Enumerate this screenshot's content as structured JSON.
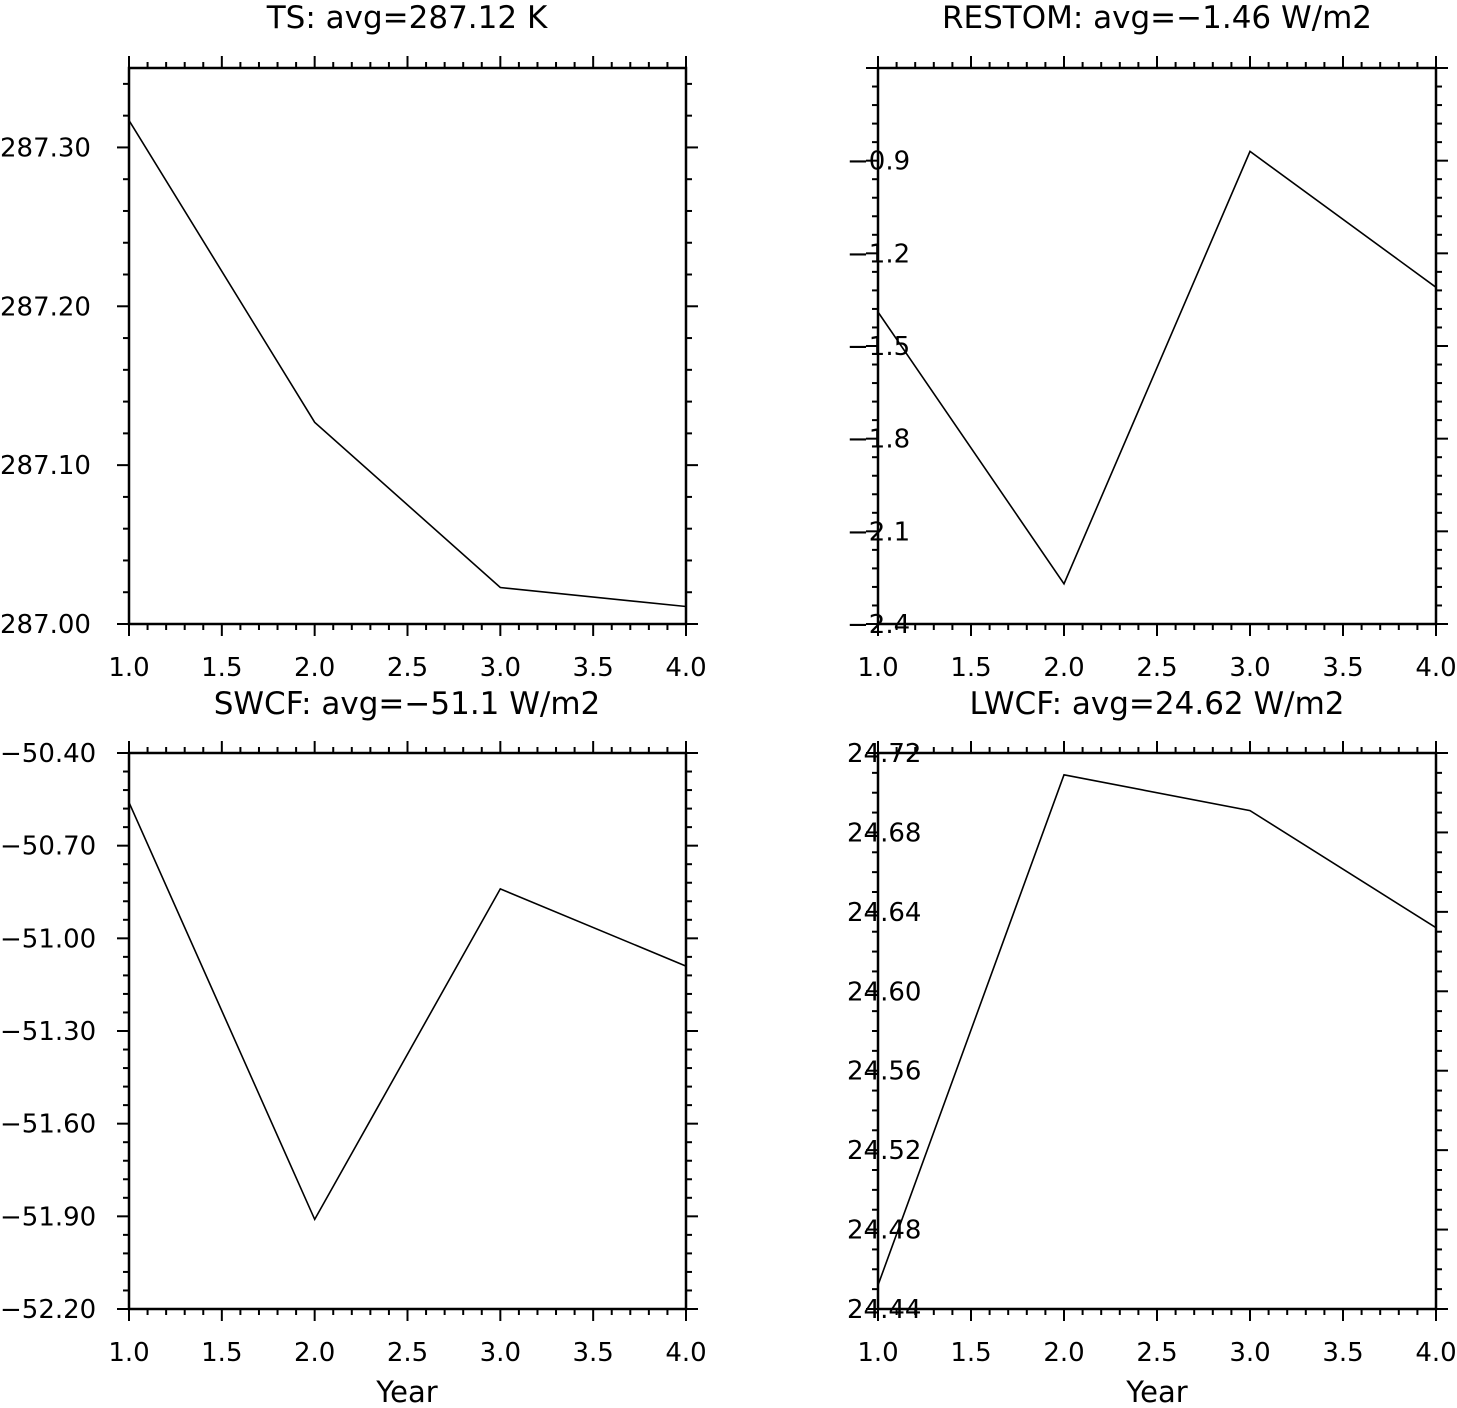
{
  "chart_data": [
    {
      "type": "line",
      "title": "TS: avg=287.12 K",
      "xlabel": "",
      "ylabel": "",
      "x": [
        1.0,
        2.0,
        3.0,
        4.0
      ],
      "series": [
        {
          "values": [
            287.317,
            287.127,
            287.023,
            287.011
          ]
        }
      ],
      "xlim": [
        1.0,
        4.0
      ],
      "ylim": [
        287.0,
        287.35
      ],
      "xticks": [
        "1.0",
        "1.5",
        "2.0",
        "2.5",
        "3.0",
        "3.5",
        "4.0"
      ],
      "yticks": [
        "287.00",
        "287.10",
        "287.20",
        "287.30"
      ],
      "grid": false,
      "legend": "none"
    },
    {
      "type": "line",
      "title": "RESTOM: avg=−1.46 W/m2",
      "xlabel": "",
      "ylabel": "",
      "x": [
        1.0,
        2.0,
        3.0,
        4.0
      ],
      "series": [
        {
          "values": [
            -1.39,
            -2.27,
            -0.87,
            -1.31
          ]
        }
      ],
      "xlim": [
        1.0,
        4.0
      ],
      "ylim": [
        -2.4,
        -0.6
      ],
      "xticks": [
        "1.0",
        "1.5",
        "2.0",
        "2.5",
        "3.0",
        "3.5",
        "4.0"
      ],
      "yticks": [
        "−2.4",
        "−2.1",
        "−1.8",
        "−1.5",
        "−1.2",
        "−0.9"
      ],
      "grid": false,
      "legend": "none"
    },
    {
      "type": "line",
      "title": "SWCF: avg=−51.1 W/m2",
      "xlabel": "Year",
      "ylabel": "",
      "x": [
        1.0,
        2.0,
        3.0,
        4.0
      ],
      "series": [
        {
          "values": [
            -50.56,
            -51.91,
            -50.84,
            -51.09
          ]
        }
      ],
      "xlim": [
        1.0,
        4.0
      ],
      "ylim": [
        -52.2,
        -50.4
      ],
      "xticks": [
        "1.0",
        "1.5",
        "2.0",
        "2.5",
        "3.0",
        "3.5",
        "4.0"
      ],
      "yticks": [
        "−52.20",
        "−51.90",
        "−51.60",
        "−51.30",
        "−51.00",
        "−50.70",
        "−50.40"
      ],
      "grid": false,
      "legend": "none"
    },
    {
      "type": "line",
      "title": "LWCF: avg=24.62 W/m2",
      "xlabel": "Year",
      "ylabel": "",
      "x": [
        1.0,
        2.0,
        3.0,
        4.0
      ],
      "series": [
        {
          "values": [
            24.452,
            24.709,
            24.691,
            24.632
          ]
        }
      ],
      "xlim": [
        1.0,
        4.0
      ],
      "ylim": [
        24.44,
        24.72
      ],
      "xticks": [
        "1.0",
        "1.5",
        "2.0",
        "2.5",
        "3.0",
        "3.5",
        "4.0"
      ],
      "yticks": [
        "24.44",
        "24.48",
        "24.52",
        "24.56",
        "24.60",
        "24.64",
        "24.68",
        "24.72"
      ],
      "grid": false,
      "legend": "none"
    }
  ]
}
